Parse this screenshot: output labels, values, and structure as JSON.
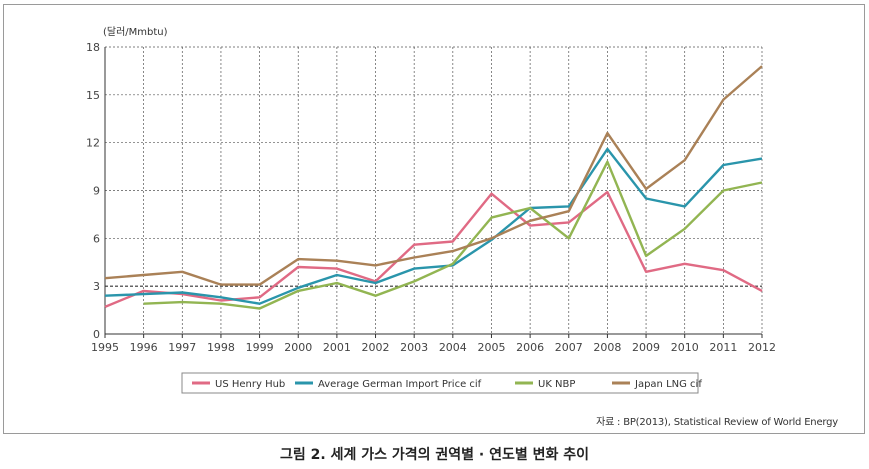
{
  "figure": {
    "caption": "그림 2. 세계 가스 가격의 권역별 · 연도별 변화 추이",
    "source": "자료 : BP(2013), Statistical Review of World Energy"
  },
  "chart_data": {
    "type": "line",
    "title": "",
    "ylabel": "(달러/Mmbtu)",
    "xlabel": "",
    "x": [
      "1995",
      "1996",
      "1997",
      "1998",
      "1999",
      "2000",
      "2001",
      "2002",
      "2003",
      "2004",
      "2005",
      "2006",
      "2007",
      "2008",
      "2009",
      "2010",
      "2011",
      "2012"
    ],
    "ylim": [
      0,
      18
    ],
    "yticks": [
      0,
      3,
      6,
      9,
      12,
      15,
      18
    ],
    "grid": "dashed",
    "reference_line": 3,
    "legend_position": "bottom",
    "series": [
      {
        "name": "US Henry Hub",
        "color": "#e06a84",
        "values": [
          1.7,
          2.7,
          2.5,
          2.1,
          2.3,
          4.2,
          4.1,
          3.3,
          5.6,
          5.8,
          8.8,
          6.8,
          7.0,
          8.9,
          3.9,
          4.4,
          4.0,
          2.7
        ]
      },
      {
        "name": "Average German Import Price cif",
        "color": "#2a95ab",
        "values": [
          2.4,
          2.5,
          2.6,
          2.3,
          1.9,
          2.9,
          3.7,
          3.2,
          4.1,
          4.3,
          5.9,
          7.9,
          8.0,
          11.6,
          8.5,
          8.0,
          10.6,
          11.0
        ]
      },
      {
        "name": "UK NBP",
        "color": "#92b552",
        "values": [
          null,
          1.9,
          2.0,
          1.9,
          1.6,
          2.7,
          3.2,
          2.4,
          3.3,
          4.4,
          7.3,
          7.9,
          6.0,
          10.8,
          4.9,
          6.6,
          9.0,
          9.5
        ]
      },
      {
        "name": "Japan LNG cif",
        "color": "#aa8157",
        "values": [
          3.5,
          3.7,
          3.9,
          3.1,
          3.1,
          4.7,
          4.6,
          4.3,
          4.8,
          5.2,
          6.0,
          7.1,
          7.7,
          12.6,
          9.1,
          10.9,
          14.7,
          16.8
        ]
      }
    ]
  }
}
